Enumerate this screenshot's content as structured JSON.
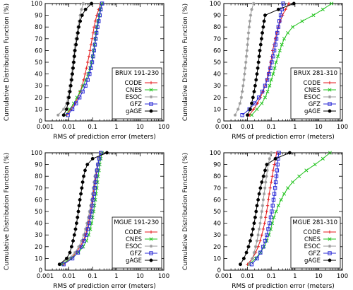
{
  "figure": {
    "ylabel": "Cumulative Distribution Function (%)",
    "xlabel": "RMS of prediction error (meters)"
  },
  "chart_data": [
    {
      "type": "line",
      "title": "BRUX 191-230",
      "xlabel": "RMS of prediction error (meters)",
      "ylabel": "Cumulative Distribution Function (%)",
      "xscale": "log",
      "xlim": [
        0.001,
        100
      ],
      "ylim": [
        0,
        100
      ],
      "xticks": [
        "0.001",
        "0.01",
        "0.1",
        "1",
        "10",
        "100"
      ],
      "yticks": [
        "0",
        "10",
        "20",
        "30",
        "40",
        "50",
        "60",
        "70",
        "80",
        "90",
        "100"
      ],
      "grid": false,
      "legend_position": "bottom-right",
      "series": [
        {
          "name": "CODE",
          "color": "#e41a1c",
          "marker": "plus",
          "x": [
            0.008,
            0.012,
            0.018,
            0.024,
            0.03,
            0.036,
            0.042,
            0.048,
            0.055,
            0.062,
            0.07,
            0.078,
            0.086,
            0.095,
            0.105,
            0.115,
            0.13,
            0.15,
            0.18,
            0.22
          ],
          "y": [
            5,
            10,
            15,
            20,
            25,
            30,
            35,
            40,
            45,
            50,
            55,
            60,
            65,
            70,
            75,
            80,
            85,
            90,
            95,
            100
          ]
        },
        {
          "name": "CNES",
          "color": "#22c31e",
          "marker": "x",
          "x": [
            0.007,
            0.011,
            0.016,
            0.022,
            0.03,
            0.04,
            0.052,
            0.065,
            0.078,
            0.09,
            0.1,
            0.11,
            0.12,
            0.13,
            0.14,
            0.15,
            0.17,
            0.19,
            0.21,
            0.24
          ],
          "y": [
            5,
            10,
            15,
            20,
            25,
            30,
            35,
            40,
            45,
            50,
            55,
            60,
            65,
            70,
            75,
            80,
            85,
            90,
            95,
            100
          ]
        },
        {
          "name": "ESOC",
          "color": "#9a9a9a",
          "marker": "star",
          "x": [
            0.0035,
            0.006,
            0.008,
            0.009,
            0.01,
            0.011,
            0.012,
            0.013,
            0.014,
            0.015,
            0.016,
            0.017,
            0.018,
            0.02,
            0.022,
            0.024,
            0.027,
            0.03,
            0.034,
            0.04
          ],
          "y": [
            5,
            10,
            15,
            20,
            25,
            30,
            35,
            40,
            45,
            50,
            55,
            60,
            65,
            70,
            75,
            80,
            85,
            90,
            95,
            100
          ]
        },
        {
          "name": "GFZ",
          "color": "#2b2bd6",
          "marker": "square",
          "x": [
            0.009,
            0.014,
            0.02,
            0.028,
            0.038,
            0.05,
            0.062,
            0.074,
            0.085,
            0.095,
            0.105,
            0.115,
            0.125,
            0.135,
            0.145,
            0.16,
            0.18,
            0.2,
            0.22,
            0.25
          ],
          "y": [
            5,
            10,
            15,
            20,
            25,
            30,
            35,
            40,
            45,
            50,
            55,
            60,
            65,
            70,
            75,
            80,
            85,
            90,
            95,
            100
          ]
        },
        {
          "name": "gAGE",
          "color": "#000000",
          "marker": "circle",
          "x": [
            0.006,
            0.008,
            0.009,
            0.01,
            0.011,
            0.012,
            0.013,
            0.014,
            0.015,
            0.016,
            0.017,
            0.018,
            0.02,
            0.022,
            0.024,
            0.026,
            0.03,
            0.036,
            0.05,
            0.09
          ],
          "y": [
            5,
            10,
            15,
            20,
            25,
            30,
            35,
            40,
            45,
            50,
            55,
            60,
            65,
            70,
            75,
            80,
            85,
            90,
            95,
            100
          ]
        }
      ]
    },
    {
      "type": "line",
      "title": "BRUX 281-310",
      "xlabel": "RMS of prediction error (meters)",
      "ylabel": "Cumulative Distribution Function (%)",
      "xscale": "log",
      "xlim": [
        0.001,
        100
      ],
      "ylim": [
        0,
        100
      ],
      "xticks": [
        "0.001",
        "0.01",
        "0.1",
        "1",
        "10",
        "100"
      ],
      "yticks": [
        "0",
        "10",
        "20",
        "30",
        "40",
        "50",
        "60",
        "70",
        "80",
        "90",
        "100"
      ],
      "grid": false,
      "legend_position": "bottom-right",
      "series": [
        {
          "name": "CODE",
          "color": "#e41a1c",
          "marker": "plus",
          "x": [
            0.012,
            0.018,
            0.026,
            0.035,
            0.045,
            0.055,
            0.065,
            0.075,
            0.085,
            0.095,
            0.105,
            0.115,
            0.13,
            0.15,
            0.17,
            0.2,
            0.24,
            0.3,
            0.4,
            0.55
          ],
          "y": [
            5,
            10,
            15,
            20,
            25,
            30,
            35,
            40,
            45,
            50,
            55,
            60,
            65,
            70,
            75,
            80,
            85,
            90,
            95,
            100
          ]
        },
        {
          "name": "CNES",
          "color": "#22c31e",
          "marker": "x",
          "x": [
            0.015,
            0.025,
            0.04,
            0.055,
            0.07,
            0.085,
            0.1,
            0.12,
            0.14,
            0.16,
            0.19,
            0.23,
            0.28,
            0.35,
            0.5,
            0.8,
            2,
            6,
            15,
            35
          ],
          "y": [
            5,
            10,
            15,
            20,
            25,
            30,
            35,
            40,
            45,
            50,
            55,
            60,
            65,
            70,
            75,
            80,
            85,
            90,
            95,
            100
          ]
        },
        {
          "name": "ESOC",
          "color": "#9a9a9a",
          "marker": "star",
          "x": [
            0.003,
            0.004,
            0.0048,
            0.0055,
            0.006,
            0.0065,
            0.007,
            0.0075,
            0.008,
            0.0085,
            0.009,
            0.0095,
            0.01,
            0.0105,
            0.011,
            0.0118,
            0.0125,
            0.0135,
            0.015,
            0.018
          ],
          "y": [
            5,
            10,
            15,
            20,
            25,
            30,
            35,
            40,
            45,
            50,
            55,
            60,
            65,
            70,
            75,
            80,
            85,
            90,
            95,
            100
          ]
        },
        {
          "name": "GFZ",
          "color": "#2b2bd6",
          "marker": "square",
          "x": [
            0.006,
            0.012,
            0.02,
            0.03,
            0.042,
            0.055,
            0.068,
            0.08,
            0.092,
            0.105,
            0.12,
            0.135,
            0.15,
            0.165,
            0.18,
            0.2,
            0.22,
            0.25,
            0.28,
            0.32
          ],
          "y": [
            5,
            10,
            15,
            20,
            25,
            30,
            35,
            40,
            45,
            50,
            55,
            60,
            65,
            70,
            75,
            80,
            85,
            90,
            95,
            100
          ]
        },
        {
          "name": "gAGE",
          "color": "#000000",
          "marker": "circle",
          "x": [
            0.01,
            0.013,
            0.015,
            0.017,
            0.019,
            0.021,
            0.023,
            0.025,
            0.027,
            0.029,
            0.031,
            0.033,
            0.036,
            0.039,
            0.042,
            0.046,
            0.05,
            0.055,
            0.2,
            0.9
          ],
          "y": [
            5,
            10,
            15,
            20,
            25,
            30,
            35,
            40,
            45,
            50,
            55,
            60,
            65,
            70,
            75,
            80,
            85,
            90,
            95,
            100
          ]
        }
      ]
    },
    {
      "type": "line",
      "title": "MGUE 191-230",
      "xlabel": "RMS of prediction error (meters)",
      "ylabel": "Cumulative Distribution Function (%)",
      "xscale": "log",
      "xlim": [
        0.001,
        100
      ],
      "ylim": [
        0,
        100
      ],
      "xticks": [
        "0.001",
        "0.01",
        "0.1",
        "1",
        "10",
        "100"
      ],
      "yticks": [
        "0",
        "10",
        "20",
        "30",
        "40",
        "50",
        "60",
        "70",
        "80",
        "90",
        "100"
      ],
      "grid": false,
      "legend_position": "bottom-right",
      "series": [
        {
          "name": "CODE",
          "color": "#e41a1c",
          "marker": "plus",
          "x": [
            0.006,
            0.012,
            0.02,
            0.03,
            0.04,
            0.05,
            0.058,
            0.066,
            0.074,
            0.082,
            0.09,
            0.098,
            0.106,
            0.115,
            0.125,
            0.135,
            0.15,
            0.17,
            0.19,
            0.22
          ],
          "y": [
            5,
            10,
            15,
            20,
            25,
            30,
            35,
            40,
            45,
            50,
            55,
            60,
            65,
            70,
            75,
            80,
            85,
            90,
            95,
            100
          ]
        },
        {
          "name": "CNES",
          "color": "#22c31e",
          "marker": "x",
          "x": [
            0.005,
            0.012,
            0.025,
            0.04,
            0.055,
            0.068,
            0.08,
            0.09,
            0.1,
            0.11,
            0.12,
            0.13,
            0.14,
            0.15,
            0.16,
            0.17,
            0.185,
            0.2,
            0.22,
            0.25
          ],
          "y": [
            5,
            10,
            15,
            20,
            25,
            30,
            35,
            40,
            45,
            50,
            55,
            60,
            65,
            70,
            75,
            80,
            85,
            90,
            95,
            100
          ]
        },
        {
          "name": "ESOC",
          "color": "#9a9a9a",
          "marker": "star",
          "x": [
            0.004,
            0.01,
            0.018,
            0.026,
            0.034,
            0.042,
            0.05,
            0.058,
            0.066,
            0.074,
            0.082,
            0.09,
            0.098,
            0.106,
            0.115,
            0.125,
            0.14,
            0.16,
            0.18,
            0.21
          ],
          "y": [
            5,
            10,
            15,
            20,
            25,
            30,
            35,
            40,
            45,
            50,
            55,
            60,
            65,
            70,
            75,
            80,
            85,
            90,
            95,
            100
          ]
        },
        {
          "name": "GFZ",
          "color": "#2b2bd6",
          "marker": "square",
          "x": [
            0.006,
            0.014,
            0.024,
            0.034,
            0.044,
            0.054,
            0.063,
            0.072,
            0.081,
            0.09,
            0.098,
            0.106,
            0.115,
            0.124,
            0.133,
            0.143,
            0.155,
            0.17,
            0.19,
            0.22
          ],
          "y": [
            5,
            10,
            15,
            20,
            25,
            30,
            35,
            40,
            45,
            50,
            55,
            60,
            65,
            70,
            75,
            80,
            85,
            90,
            95,
            100
          ]
        },
        {
          "name": "gAGE",
          "color": "#000000",
          "marker": "circle",
          "x": [
            0.004,
            0.008,
            0.011,
            0.013,
            0.015,
            0.017,
            0.019,
            0.021,
            0.023,
            0.025,
            0.027,
            0.029,
            0.032,
            0.035,
            0.038,
            0.042,
            0.048,
            0.06,
            0.1,
            0.4
          ],
          "y": [
            5,
            10,
            15,
            20,
            25,
            30,
            35,
            40,
            45,
            50,
            55,
            60,
            65,
            70,
            75,
            80,
            85,
            90,
            95,
            100
          ]
        }
      ]
    },
    {
      "type": "line",
      "title": "MGUE 281-310",
      "xlabel": "RMS of prediction error (meters)",
      "ylabel": "Cumulative Distribution Function (%)",
      "xscale": "log",
      "xlim": [
        0.001,
        100
      ],
      "ylim": [
        0,
        100
      ],
      "xticks": [
        "0.001",
        "0.01",
        "0.1",
        "1",
        "10",
        "100"
      ],
      "yticks": [
        "0",
        "10",
        "20",
        "30",
        "40",
        "50",
        "60",
        "70",
        "80",
        "90",
        "100"
      ],
      "grid": false,
      "legend_position": "bottom-right",
      "series": [
        {
          "name": "CODE",
          "color": "#e41a1c",
          "marker": "plus",
          "x": [
            0.01,
            0.016,
            0.022,
            0.028,
            0.034,
            0.04,
            0.046,
            0.052,
            0.058,
            0.064,
            0.07,
            0.076,
            0.082,
            0.09,
            0.1,
            0.11,
            0.12,
            0.135,
            0.15,
            0.17
          ],
          "y": [
            5,
            10,
            15,
            20,
            25,
            30,
            35,
            40,
            45,
            50,
            55,
            60,
            65,
            70,
            75,
            80,
            85,
            90,
            95,
            100
          ]
        },
        {
          "name": "CNES",
          "color": "#22c31e",
          "marker": "x",
          "x": [
            0.012,
            0.022,
            0.035,
            0.05,
            0.065,
            0.08,
            0.095,
            0.11,
            0.13,
            0.16,
            0.2,
            0.26,
            0.35,
            0.5,
            0.8,
            1.5,
            3,
            7,
            15,
            30
          ],
          "y": [
            5,
            10,
            15,
            20,
            25,
            30,
            35,
            40,
            45,
            50,
            55,
            60,
            65,
            70,
            75,
            80,
            85,
            90,
            95,
            100
          ]
        },
        {
          "name": "ESOC",
          "color": "#9a9a9a",
          "marker": "star",
          "x": [
            0.012,
            0.016,
            0.019,
            0.022,
            0.025,
            0.028,
            0.031,
            0.034,
            0.037,
            0.04,
            0.043,
            0.046,
            0.05,
            0.054,
            0.058,
            0.063,
            0.068,
            0.075,
            0.085,
            0.1
          ],
          "y": [
            5,
            10,
            15,
            20,
            25,
            30,
            35,
            40,
            45,
            50,
            55,
            60,
            65,
            70,
            75,
            80,
            85,
            90,
            95,
            100
          ]
        },
        {
          "name": "GFZ",
          "color": "#2b2bd6",
          "marker": "square",
          "x": [
            0.015,
            0.025,
            0.035,
            0.045,
            0.055,
            0.065,
            0.075,
            0.085,
            0.095,
            0.105,
            0.115,
            0.125,
            0.135,
            0.145,
            0.155,
            0.165,
            0.175,
            0.185,
            0.195,
            0.21
          ],
          "y": [
            5,
            10,
            15,
            20,
            25,
            30,
            35,
            40,
            45,
            50,
            55,
            60,
            65,
            70,
            75,
            80,
            85,
            90,
            95,
            100
          ]
        },
        {
          "name": "gAGE",
          "color": "#000000",
          "marker": "circle",
          "x": [
            0.005,
            0.007,
            0.009,
            0.011,
            0.013,
            0.015,
            0.017,
            0.019,
            0.021,
            0.023,
            0.025,
            0.028,
            0.031,
            0.035,
            0.04,
            0.047,
            0.055,
            0.065,
            0.15,
            0.6
          ],
          "y": [
            5,
            10,
            15,
            20,
            25,
            30,
            35,
            40,
            45,
            50,
            55,
            60,
            65,
            70,
            75,
            80,
            85,
            90,
            95,
            100
          ]
        }
      ]
    }
  ]
}
